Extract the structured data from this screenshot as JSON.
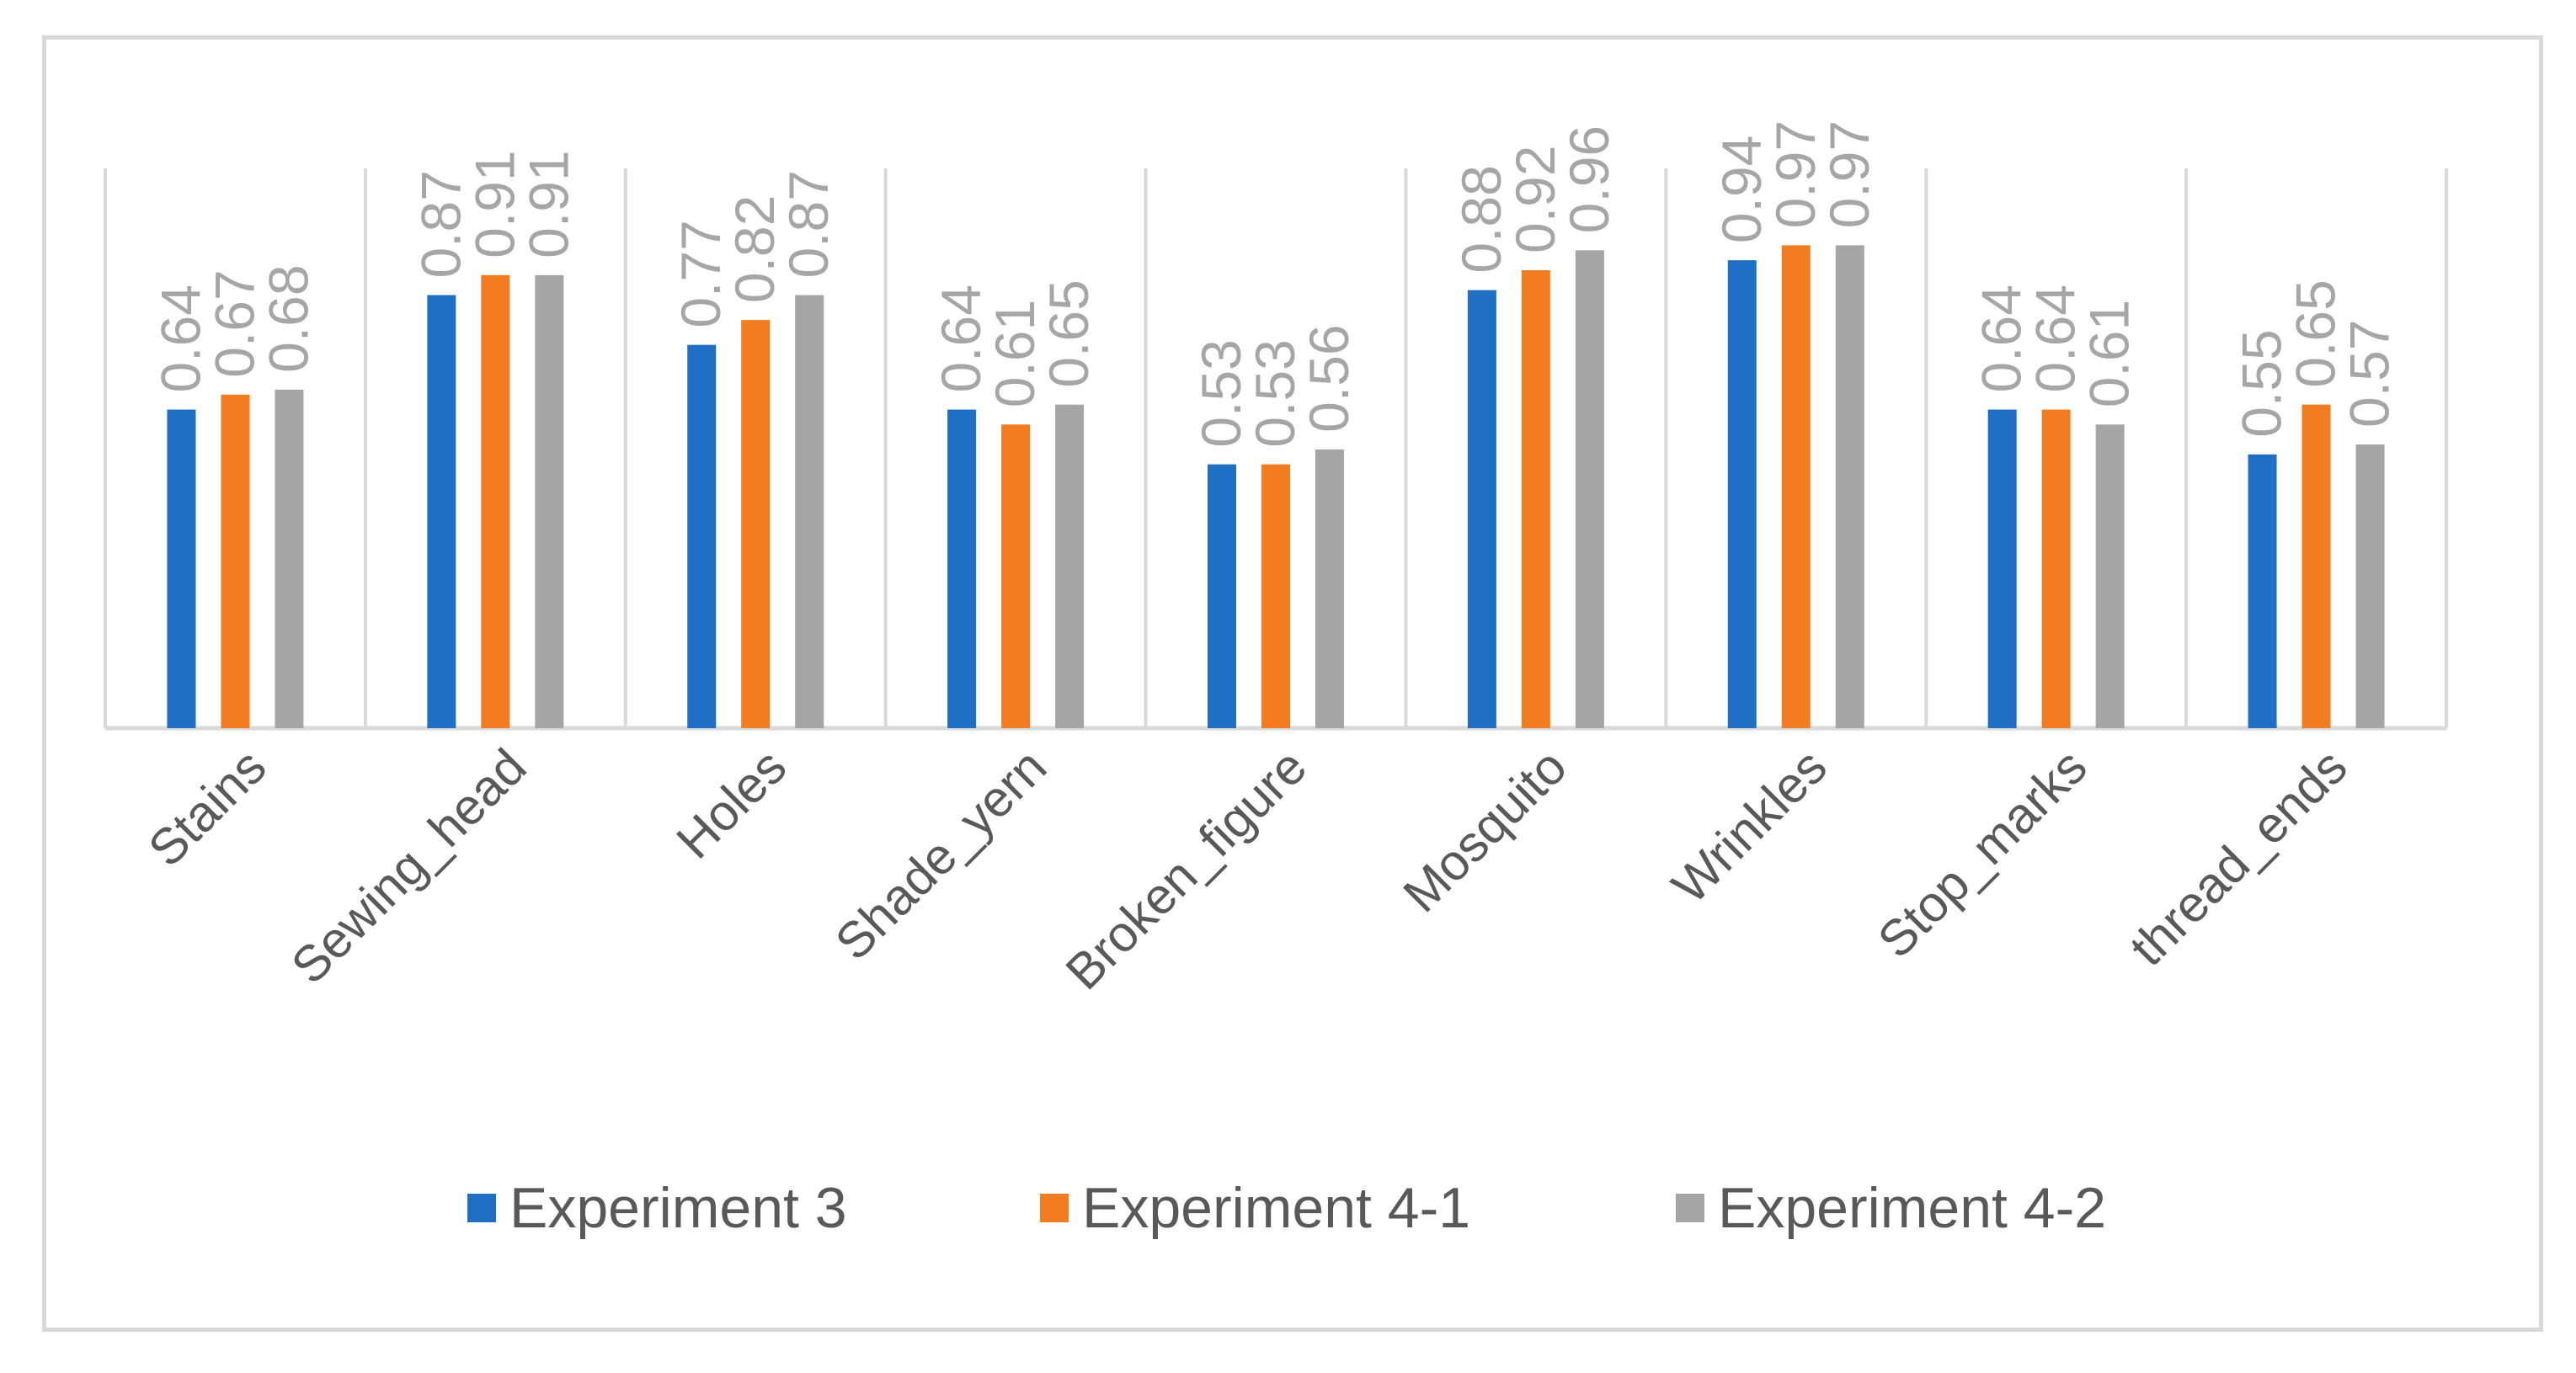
{
  "chart_data": {
    "type": "bar",
    "title": "",
    "xlabel": "",
    "ylabel": "",
    "ylim": [
      0,
      1.3
    ],
    "grid": "vertical category separators",
    "legend_position": "bottom",
    "categories": [
      "Stains",
      "Sewing_head",
      "Holes",
      "Shade_yern",
      "Broken_figure",
      "Mosquito",
      "Wrinkles",
      "Stop_marks",
      "thread_ends"
    ],
    "series": [
      {
        "name": "Experiment 3",
        "color": "#1f6fc5",
        "values": [
          0.64,
          0.87,
          0.77,
          0.64,
          0.53,
          0.88,
          0.94,
          0.64,
          0.55
        ]
      },
      {
        "name": "Experiment 4-1",
        "color": "#f47c20",
        "values": [
          0.67,
          0.91,
          0.82,
          0.61,
          0.53,
          0.92,
          0.97,
          0.64,
          0.65
        ]
      },
      {
        "name": "Experiment 4-2",
        "color": "#a5a5a5",
        "values": [
          0.68,
          0.91,
          0.87,
          0.65,
          0.56,
          0.96,
          0.97,
          0.61,
          0.57
        ]
      }
    ]
  }
}
